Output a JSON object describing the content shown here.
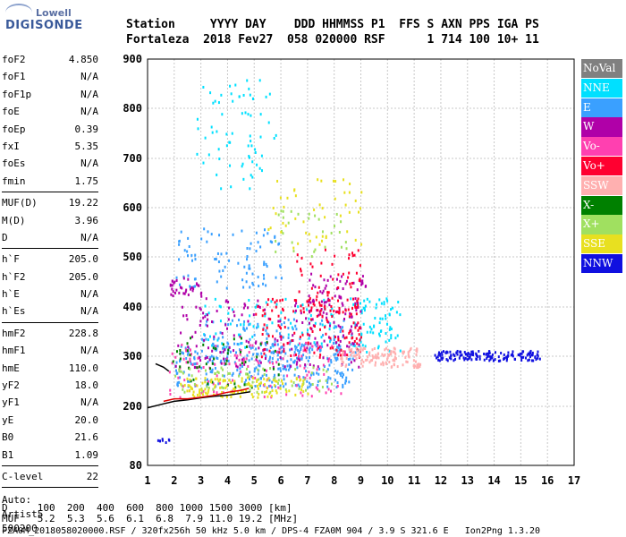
{
  "logo": {
    "top": "Lowell",
    "main": "DIGISONDE"
  },
  "header": {
    "line1": "Station     YYYY DAY    DDD HHMMSS P1  FFS S AXN PPS IGA PS",
    "line2": "Fortaleza  2018 Fev27  058 020000 RSF      1 714 100 10+ 11"
  },
  "params": [
    {
      "label": "foF2",
      "value": "4.850"
    },
    {
      "label": "foF1",
      "value": "N/A"
    },
    {
      "label": "foF1p",
      "value": "N/A"
    },
    {
      "label": "foE",
      "value": "N/A"
    },
    {
      "label": "foEp",
      "value": "0.39"
    },
    {
      "label": "fxI",
      "value": "5.35"
    },
    {
      "label": "foEs",
      "value": "N/A"
    },
    {
      "label": "fmin",
      "value": "1.75"
    },
    {
      "sep": true
    },
    {
      "label": "MUF(D)",
      "value": "19.22"
    },
    {
      "label": "M(D)",
      "value": "3.96"
    },
    {
      "label": "D",
      "value": "N/A"
    },
    {
      "sep": true
    },
    {
      "label": "h`F",
      "value": "205.0"
    },
    {
      "label": "h`F2",
      "value": "205.0"
    },
    {
      "label": "h`E",
      "value": "N/A"
    },
    {
      "label": "h`Es",
      "value": "N/A"
    },
    {
      "sep": true
    },
    {
      "label": "hmF2",
      "value": "228.8"
    },
    {
      "label": "hmF1",
      "value": "N/A"
    },
    {
      "label": "hmE",
      "value": "110.0"
    },
    {
      "label": "yF2",
      "value": "18.0"
    },
    {
      "label": "yF1",
      "value": "N/A"
    },
    {
      "label": "yE",
      "value": "20.0"
    },
    {
      "label": "B0",
      "value": "21.6"
    },
    {
      "label": "B1",
      "value": "1.09"
    },
    {
      "sep": true
    },
    {
      "label": "C-level",
      "value": "22"
    },
    {
      "sep": true
    }
  ],
  "auto": {
    "line1": "Auto:",
    "line2": "Artist5",
    "line3": "500200"
  },
  "legend": [
    {
      "label": "NoVal",
      "color": "#808080"
    },
    {
      "label": "NNE",
      "color": "#00e0ff"
    },
    {
      "label": "E",
      "color": "#3aa0ff"
    },
    {
      "label": "W",
      "color": "#b000a8"
    },
    {
      "label": "Vo-",
      "color": "#ff40b0"
    },
    {
      "label": "Vo+",
      "color": "#ff0030"
    },
    {
      "label": "SSW",
      "color": "#ffb0b0"
    },
    {
      "label": "X-",
      "color": "#008000"
    },
    {
      "label": "X+",
      "color": "#a0e060"
    },
    {
      "label": "SSE",
      "color": "#e8e020"
    },
    {
      "label": "NNW",
      "color": "#1010e0"
    }
  ],
  "footer": {
    "line1": "D     100  200  400  600  800 1000 1500 3000 [km]",
    "line2": "MUF   5.2  5.3  5.6  6.1  6.8  7.9 11.0 19.2 [MHz]",
    "line3": "FZA0M_2018058020000.RSF / 320fx256h 50 kHz 5.0 km / DPS-4 FZA0M 904 / 3.9 S 321.6 E   Ion2Png 1.3.20"
  },
  "chart_data": {
    "type": "scatter",
    "xlim": [
      1,
      17
    ],
    "ylim": [
      80,
      900
    ],
    "x_ticks": [
      1,
      2,
      3,
      4,
      5,
      6,
      7,
      8,
      9,
      10,
      11,
      12,
      13,
      14,
      15,
      16,
      17
    ],
    "y_ticks": [
      80,
      200,
      300,
      400,
      500,
      600,
      700,
      800,
      900
    ],
    "grid": true,
    "series": [
      {
        "name": "NNE",
        "color": "#00e0ff",
        "clusters": [
          {
            "x": [
              2.8,
              5.8
            ],
            "y": [
              640,
              860
            ],
            "n": 70
          },
          {
            "x": [
              8.5,
              10.5
            ],
            "y": [
              310,
              420
            ],
            "n": 80
          },
          {
            "x": [
              3,
              8
            ],
            "y": [
              320,
              420
            ],
            "n": 80
          }
        ]
      },
      {
        "name": "E",
        "color": "#3aa0ff",
        "clusters": [
          {
            "x": [
              2,
              8.8
            ],
            "y": [
              240,
              330
            ],
            "n": 260
          },
          {
            "x": [
              3,
              8.5
            ],
            "y": [
              290,
              380
            ],
            "n": 120
          },
          {
            "x": [
              2,
              6
            ],
            "y": [
              440,
              560
            ],
            "n": 90
          }
        ]
      },
      {
        "name": "W",
        "color": "#b000a8",
        "clusters": [
          {
            "x": [
              2,
              9
            ],
            "y": [
              280,
              420
            ],
            "n": 170
          },
          {
            "x": [
              7,
              9.2
            ],
            "y": [
              360,
              470
            ],
            "n": 70
          },
          {
            "x": [
              1.8,
              3
            ],
            "y": [
              420,
              460
            ],
            "n": 35
          }
        ]
      },
      {
        "name": "Vo-",
        "color": "#ff40b0",
        "clusters": [
          {
            "x": [
              1.8,
              8.5
            ],
            "y": [
              220,
              330
            ],
            "n": 130
          }
        ]
      },
      {
        "name": "Vo+",
        "color": "#ff0030",
        "clusters": [
          {
            "x": [
              5,
              9
            ],
            "y": [
              300,
              420
            ],
            "n": 130
          },
          {
            "x": [
              6.5,
              9
            ],
            "y": [
              380,
              520
            ],
            "n": 60
          }
        ]
      },
      {
        "name": "SSW",
        "color": "#ffb0b0",
        "clusters": [
          {
            "x": [
              8.2,
              11.2
            ],
            "y": [
              280,
              320
            ],
            "n": 130
          }
        ]
      },
      {
        "name": "X-",
        "color": "#008000",
        "clusters": [
          {
            "x": [
              1.8,
              6
            ],
            "y": [
              240,
              340
            ],
            "n": 50
          }
        ]
      },
      {
        "name": "X+",
        "color": "#a0e060",
        "clusters": [
          {
            "x": [
              2,
              8
            ],
            "y": [
              230,
              280
            ],
            "n": 70
          },
          {
            "x": [
              5.5,
              8.5
            ],
            "y": [
              500,
              600
            ],
            "n": 30
          }
        ]
      },
      {
        "name": "SSE",
        "color": "#e8e020",
        "clusters": [
          {
            "x": [
              2.2,
              7
            ],
            "y": [
              220,
              260
            ],
            "n": 120
          },
          {
            "x": [
              5.5,
              9
            ],
            "y": [
              520,
              660
            ],
            "n": 50
          }
        ]
      },
      {
        "name": "NNW",
        "color": "#1010e0",
        "clusters": [
          {
            "x": [
              11.7,
              15.7
            ],
            "y": [
              293,
              313
            ],
            "n": 150
          },
          {
            "x": [
              1.3,
              1.9
            ],
            "y": [
              128,
              138
            ],
            "n": 8
          }
        ]
      }
    ],
    "traces": [
      {
        "name": "black-profile",
        "color": "#000000",
        "x": [
          1,
          1.6,
          2,
          2.5,
          3,
          3.5,
          4,
          4.5,
          4.85
        ],
        "y": [
          197,
          205,
          210,
          213,
          217,
          220,
          222,
          226,
          229
        ]
      },
      {
        "name": "red-trace",
        "color": "#e00000",
        "x": [
          1.6,
          2,
          2.5,
          3,
          3.5,
          4,
          4.5,
          4.8
        ],
        "y": [
          210,
          215,
          215,
          218,
          222,
          228,
          232,
          236
        ]
      },
      {
        "name": "upper-trace",
        "color": "#000000",
        "x": [
          1.3,
          1.6,
          1.8
        ],
        "y": [
          285,
          278,
          270
        ]
      }
    ]
  }
}
